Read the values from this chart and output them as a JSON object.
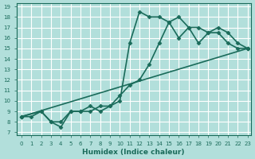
{
  "xlabel": "Humidex (Indice chaleur)",
  "xlim": [
    0,
    23
  ],
  "ylim": [
    7,
    19
  ],
  "xticks": [
    0,
    1,
    2,
    3,
    4,
    5,
    6,
    7,
    8,
    9,
    10,
    11,
    12,
    13,
    14,
    15,
    16,
    17,
    18,
    19,
    20,
    21,
    22,
    23
  ],
  "yticks": [
    7,
    8,
    9,
    10,
    11,
    12,
    13,
    14,
    15,
    16,
    17,
    18,
    19
  ],
  "bg_color": "#b2dfdb",
  "grid_color": "#ffffff",
  "line_color": "#1a6b5a",
  "line_width": 1.2,
  "marker": "D",
  "marker_size": 2.5,
  "series": [
    {
      "x": [
        0,
        1,
        2,
        3,
        4,
        5,
        6,
        7,
        8,
        9,
        10,
        11,
        12,
        13,
        14,
        15,
        16,
        17,
        18,
        19,
        20,
        21,
        22,
        23
      ],
      "y": [
        8.5,
        8.5,
        9.0,
        8.0,
        7.5,
        9.0,
        9.0,
        9.0,
        9.5,
        9.5,
        10.0,
        15.5,
        18.5,
        18.0,
        18.0,
        17.5,
        16.0,
        17.0,
        17.0,
        16.5,
        16.5,
        15.5,
        15.0,
        15.0
      ]
    },
    {
      "x": [
        0,
        2,
        3,
        4,
        5,
        6,
        7,
        8,
        9,
        10,
        11,
        12,
        13,
        14,
        15,
        16,
        17,
        18,
        19,
        20,
        21,
        22,
        23
      ],
      "y": [
        8.5,
        9.0,
        8.0,
        8.0,
        9.0,
        9.0,
        9.5,
        9.0,
        9.5,
        10.5,
        11.5,
        12.0,
        13.5,
        15.5,
        17.5,
        18.0,
        17.0,
        15.5,
        16.5,
        17.0,
        16.5,
        15.5,
        15.0
      ]
    },
    {
      "x": [
        0,
        23
      ],
      "y": [
        8.5,
        15.0
      ]
    }
  ]
}
